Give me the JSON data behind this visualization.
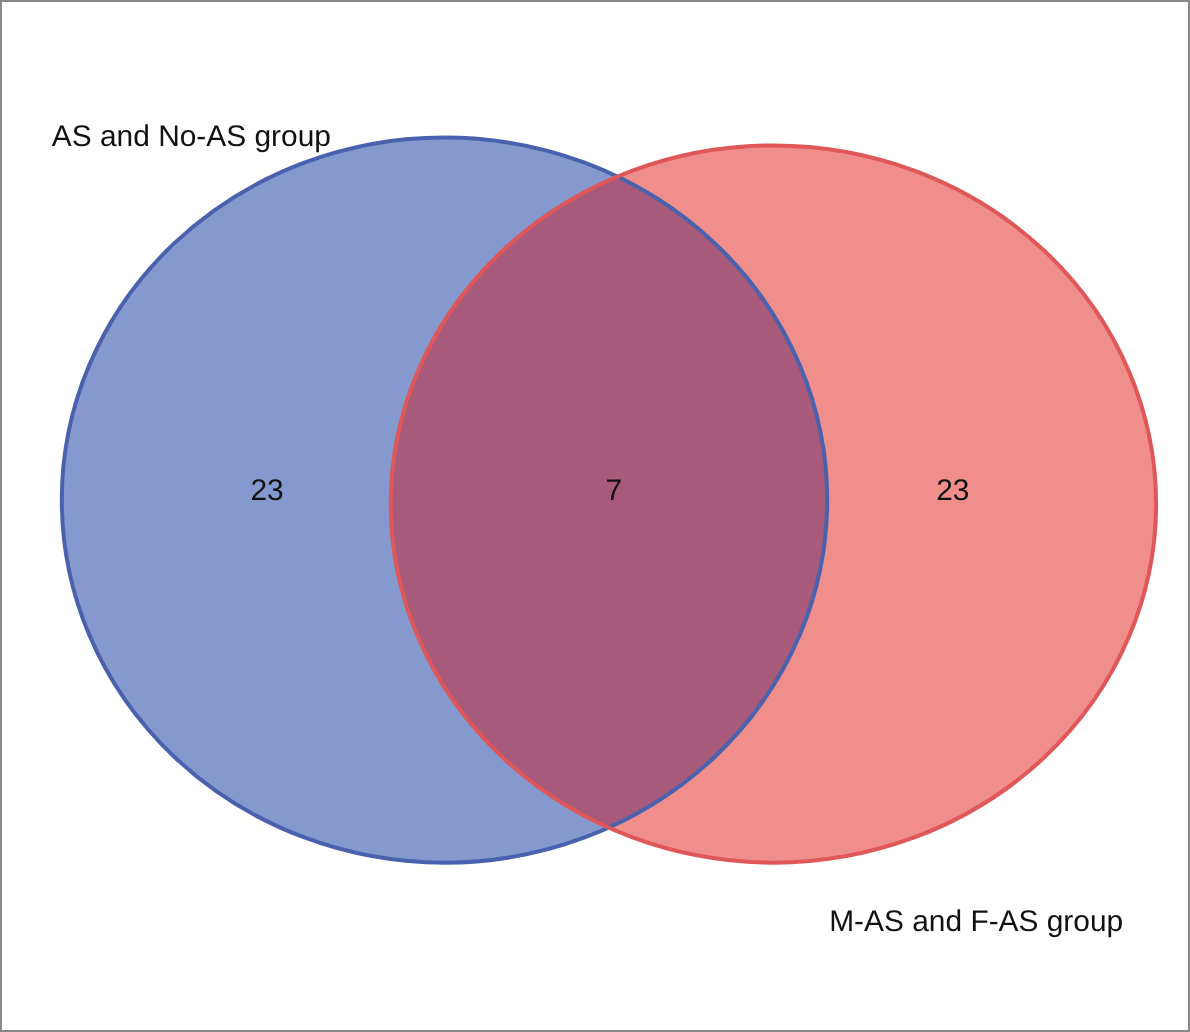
{
  "chart_data": {
    "type": "other",
    "categories": [
      null,
      null,
      null
    ],
    "values": [
      23,
      7,
      23
    ],
    "colors": [
      "#8599cf",
      "#a85a7a",
      "#ef8e8b"
    ],
    "data_labels": true,
    "annotations": [
      "AS and No-AS group",
      "M-AS and F-AS group"
    ]
  }
}
